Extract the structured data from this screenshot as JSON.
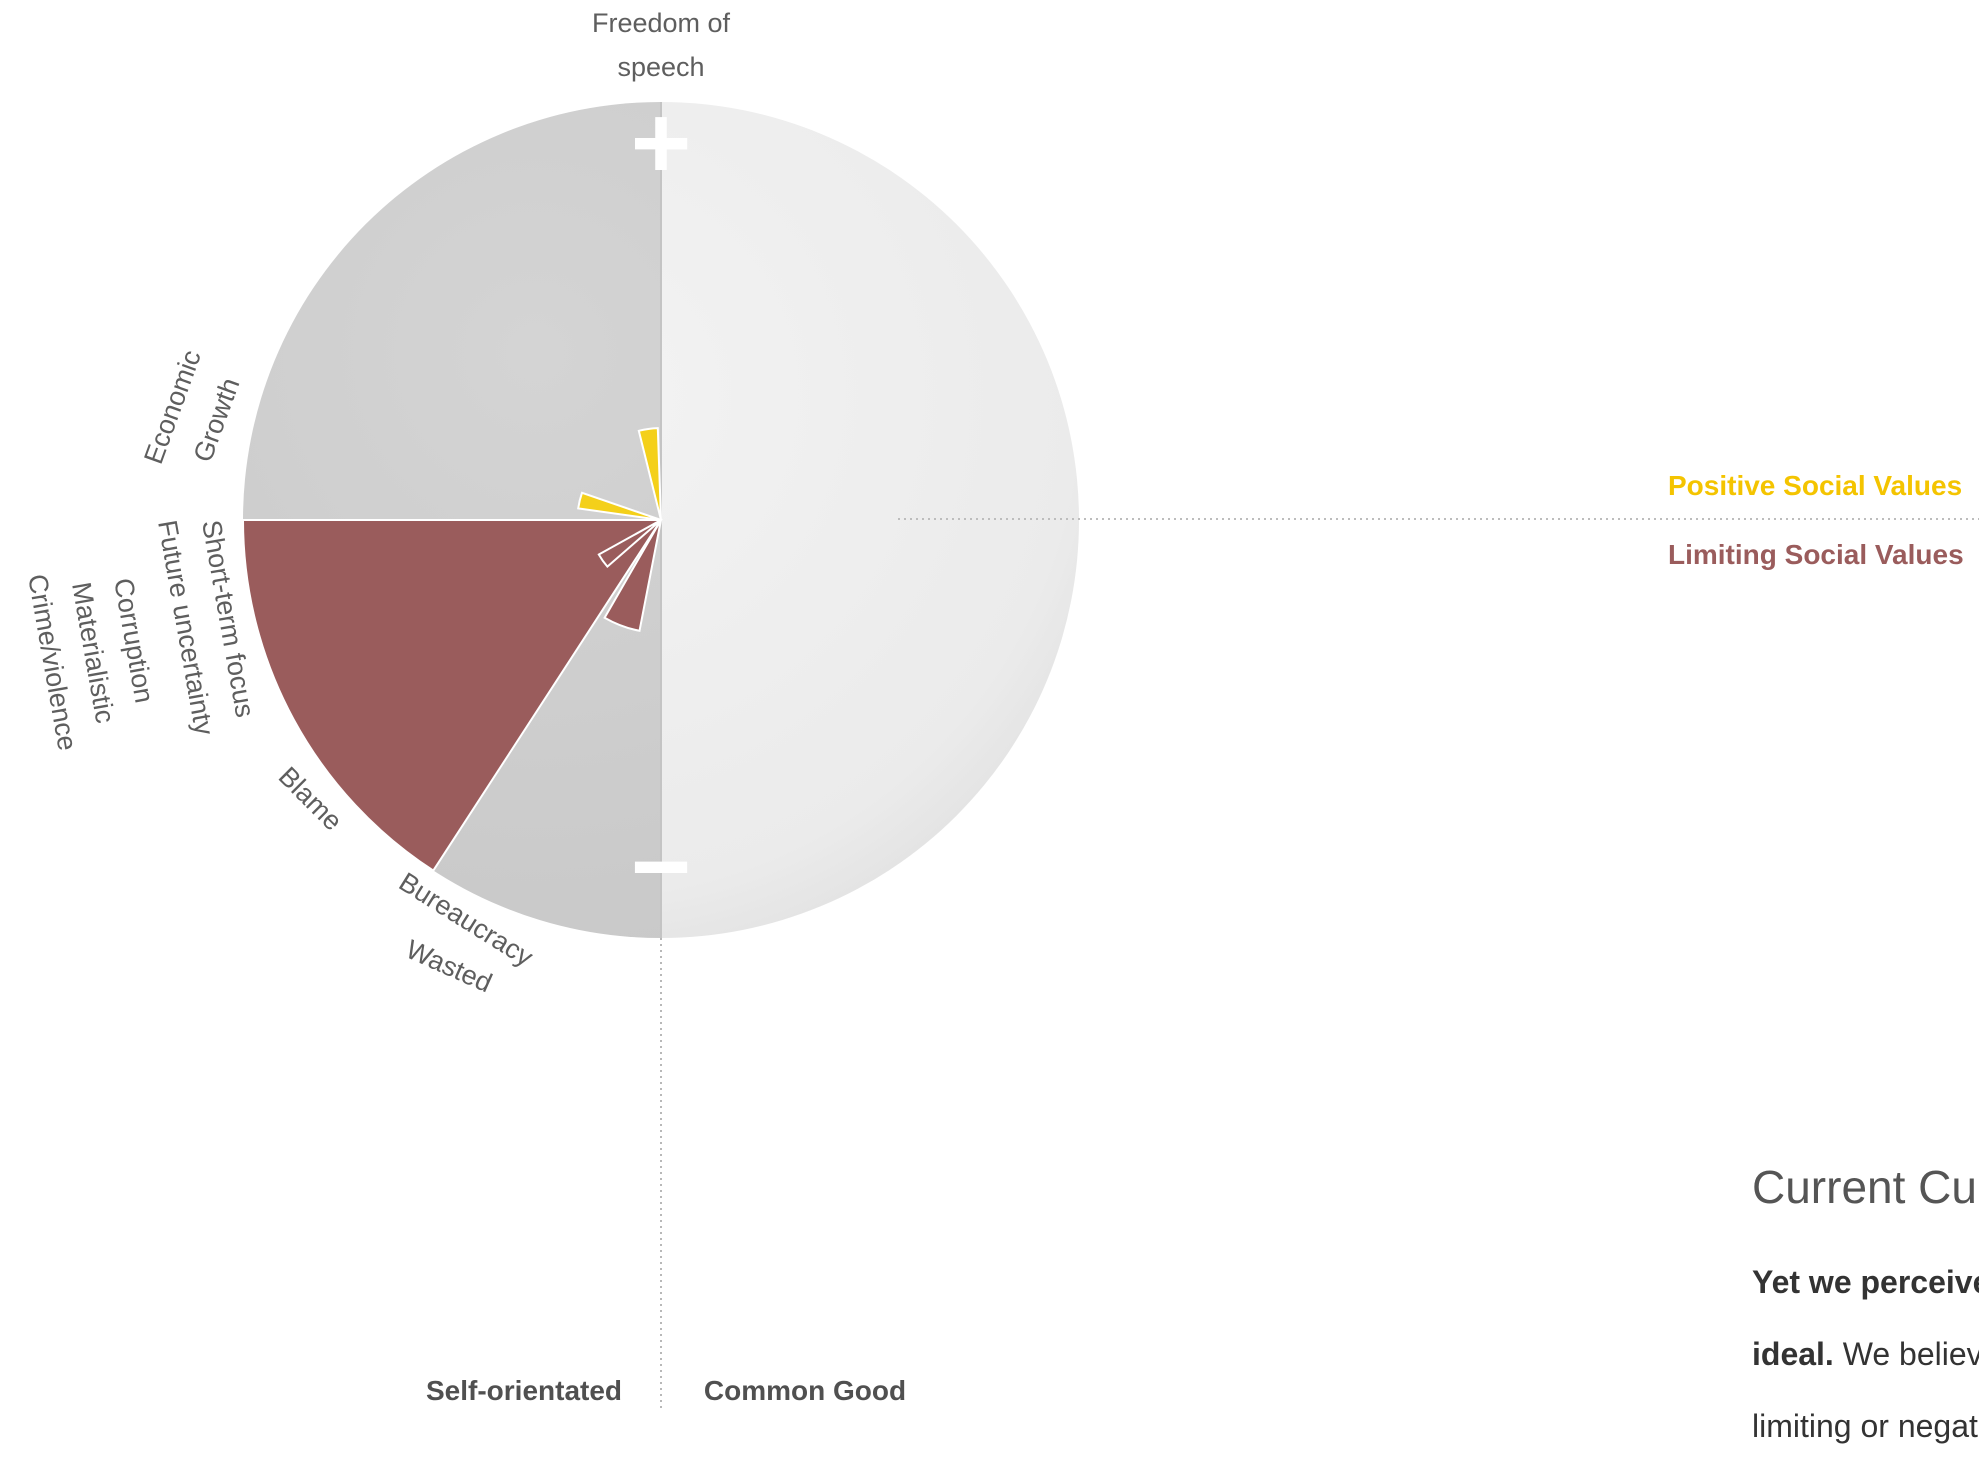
{
  "chart_data": {
    "type": "radial-bar",
    "axis_top_label": "Freedom of speech",
    "axis_top_label_lines": [
      "Freedom of",
      "speech"
    ],
    "top_symbol": "+",
    "bottom_symbol": "−",
    "bottom_left_label": "Self-orientated",
    "bottom_right_label": "Common Good",
    "legend": [
      {
        "name": "Positive Social Values",
        "color": "#f4d01a"
      },
      {
        "name": "Limiting Social Values",
        "color": "#9a5c5c"
      }
    ],
    "category_labels": [
      {
        "lines": [
          "Economic",
          "Growth"
        ]
      },
      {
        "lines": [
          "Short-term focus"
        ]
      },
      {
        "lines": [
          "Future uncertainty"
        ]
      },
      {
        "lines": [
          "Corruption"
        ]
      },
      {
        "lines": [
          "Materialistic"
        ]
      },
      {
        "lines": [
          "Crime/violence"
        ]
      },
      {
        "lines": [
          "Blame"
        ]
      },
      {
        "lines": [
          "Bureaucracy"
        ]
      },
      {
        "lines": [
          "Wasted"
        ]
      }
    ],
    "positive_wedges": [
      {
        "value": 0.22
      },
      {
        "value": 0.2
      }
    ],
    "limiting_wedges": [
      {
        "value": 1.0
      },
      {
        "value": 0.17
      },
      {
        "value": 0.27
      }
    ],
    "colors": {
      "positive": "#f4d01a",
      "limiting": "#9a5c5c",
      "left_half": "#d9d9d9",
      "right_half": "#efefef"
    }
  },
  "text_panel": {
    "title": "Current Cultu",
    "line1_bold": "Yet we perceive",
    "line2_bold": "ideal.",
    "line2_rest": " We believe",
    "line3": "limiting or negativ"
  }
}
